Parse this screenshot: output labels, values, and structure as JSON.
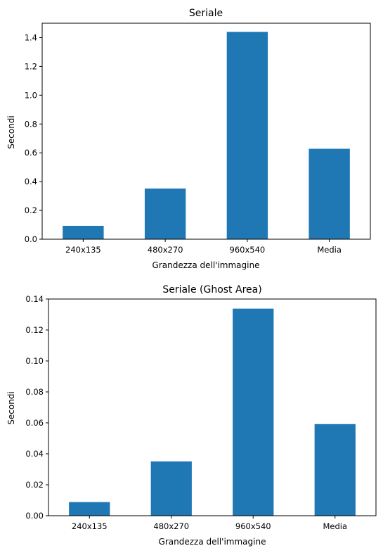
{
  "bar_color": "#1f77b4",
  "chart_data": [
    {
      "type": "bar",
      "title": "Seriale",
      "xlabel": "Grandezza dell'immagine",
      "ylabel": "Secondi",
      "categories": [
        "240x135",
        "480x270",
        "960x540",
        "Media"
      ],
      "values": [
        0.093,
        0.352,
        1.44,
        0.628
      ],
      "ylim": [
        0,
        1.5
      ],
      "yticks": [
        0.0,
        0.2,
        0.4,
        0.6,
        0.8,
        1.0,
        1.2,
        1.4
      ],
      "ytick_labels": [
        "0.0",
        "0.2",
        "0.4",
        "0.6",
        "0.8",
        "1.0",
        "1.2",
        "1.4"
      ],
      "grid": false
    },
    {
      "type": "bar",
      "title": "Seriale (Ghost Area)",
      "xlabel": "Grandezza dell'immagine",
      "ylabel": "Secondi",
      "categories": [
        "240x135",
        "480x270",
        "960x540",
        "Media"
      ],
      "values": [
        0.0088,
        0.0351,
        0.1338,
        0.0592
      ],
      "ylim": [
        0,
        0.14
      ],
      "yticks": [
        0.0,
        0.02,
        0.04,
        0.06,
        0.08,
        0.1,
        0.12,
        0.14
      ],
      "ytick_labels": [
        "0.00",
        "0.02",
        "0.04",
        "0.06",
        "0.08",
        "0.10",
        "0.12",
        "0.14"
      ],
      "grid": false
    }
  ]
}
